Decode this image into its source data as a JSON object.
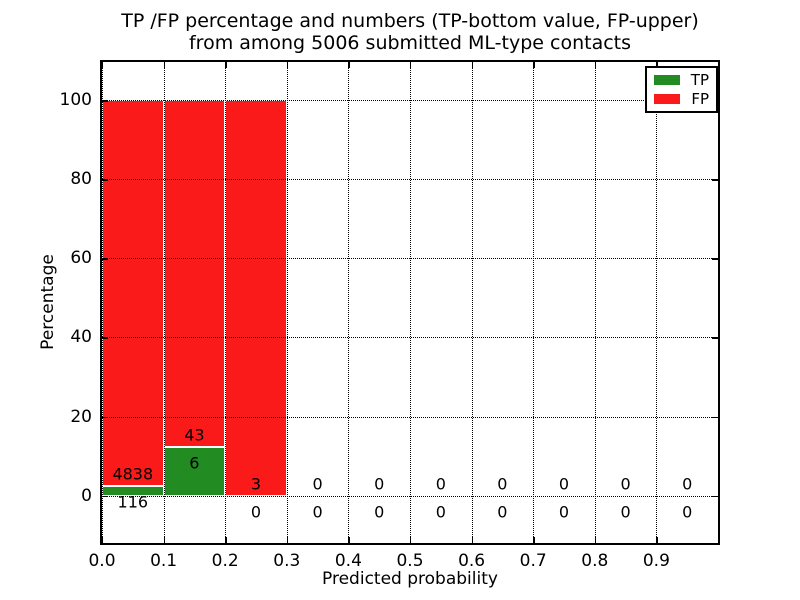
{
  "chart": {
    "title_line1": "TP /FP percentage and numbers (TP-bottom value, FP-upper)",
    "title_line2": "from among 5006 submitted ML-type contacts",
    "xlabel": "Predicted probability",
    "ylabel": "Percentage"
  },
  "legend": {
    "items": [
      {
        "label": "TP",
        "color": "#228B22"
      },
      {
        "label": "FP",
        "color": "#FB1A1A"
      }
    ]
  },
  "chart_data": {
    "type": "bar",
    "stacked": true,
    "title": "TP /FP percentage and numbers (TP-bottom value, FP-upper) from among 5006 submitted ML-type contacts",
    "xlabel": "Predicted probability",
    "ylabel": "Percentage",
    "total_contacts": 5006,
    "bin_width": 0.1,
    "bin_starts": [
      0.0,
      0.1,
      0.2,
      0.3,
      0.4,
      0.5,
      0.6,
      0.7,
      0.8,
      0.9
    ],
    "series": [
      {
        "name": "TP",
        "color": "#228B22",
        "counts": [
          116,
          6,
          0,
          0,
          0,
          0,
          0,
          0,
          0,
          0
        ],
        "percent": [
          2.34,
          12.24,
          0,
          0,
          0,
          0,
          0,
          0,
          0,
          0
        ],
        "label_position": "bottom"
      },
      {
        "name": "FP",
        "color": "#FB1A1A",
        "counts": [
          4838,
          43,
          3,
          0,
          0,
          0,
          0,
          0,
          0,
          0
        ],
        "percent": [
          97.66,
          87.76,
          100,
          0,
          0,
          0,
          0,
          0,
          0,
          0
        ],
        "label_position": "upper"
      }
    ],
    "x_ticks": {
      "values": [
        0.0,
        0.1,
        0.2,
        0.3,
        0.4,
        0.5,
        0.6,
        0.7,
        0.8,
        0.9
      ],
      "labels": [
        "0.0",
        "0.1",
        "0.2",
        "0.3",
        "0.4",
        "0.5",
        "0.6",
        "0.7",
        "0.8",
        "0.9"
      ]
    },
    "y_ticks": {
      "values": [
        0,
        20,
        40,
        60,
        80,
        100
      ],
      "labels": [
        "0",
        "20",
        "40",
        "60",
        "80",
        "100"
      ]
    },
    "xlim": [
      0.0,
      1.0
    ],
    "ylim": [
      -12.0,
      109.7
    ],
    "grid": "dotted",
    "grid_above_bars": true,
    "legend_position": "upper right"
  }
}
